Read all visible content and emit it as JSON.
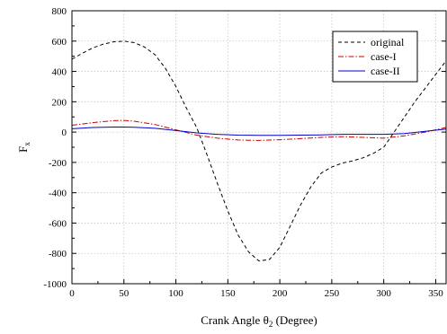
{
  "chart_data": {
    "type": "line",
    "xlabel": "Crank Angle",
    "xlabel_symbol": "θ",
    "xlabel_subscript": "2",
    "xlabel_unit": "(Degree)",
    "ylabel": "F",
    "ylabel_subscript": "x",
    "xlim": [
      0,
      360
    ],
    "ylim": [
      -1000,
      800
    ],
    "xticks": [
      0,
      50,
      100,
      150,
      200,
      250,
      300,
      350
    ],
    "yticks": [
      -1000,
      -800,
      -600,
      -400,
      -200,
      0,
      200,
      400,
      600,
      800
    ],
    "grid": true,
    "legend_position": "top-right",
    "series": [
      {
        "name": "original",
        "color": "#000000",
        "dash": "dashed",
        "x": [
          0,
          10,
          20,
          30,
          40,
          50,
          60,
          70,
          80,
          90,
          100,
          110,
          120,
          130,
          140,
          150,
          160,
          170,
          180,
          190,
          200,
          210,
          220,
          230,
          240,
          250,
          260,
          270,
          280,
          290,
          300,
          310,
          320,
          330,
          340,
          350,
          360
        ],
        "y": [
          480,
          520,
          555,
          580,
          595,
          600,
          590,
          560,
          510,
          420,
          300,
          160,
          30,
          -150,
          -340,
          -520,
          -680,
          -790,
          -850,
          -840,
          -760,
          -620,
          -480,
          -360,
          -270,
          -230,
          -205,
          -190,
          -170,
          -140,
          -100,
          0,
          100,
          200,
          290,
          380,
          470
        ]
      },
      {
        "name": "case-I",
        "color": "#cc0000",
        "dash": "dashdot",
        "x": [
          0,
          20,
          40,
          50,
          60,
          80,
          100,
          120,
          140,
          160,
          180,
          200,
          220,
          240,
          260,
          280,
          300,
          320,
          340,
          360
        ],
        "y": [
          45,
          62,
          75,
          77,
          72,
          50,
          15,
          -20,
          -40,
          -52,
          -55,
          -50,
          -43,
          -35,
          -30,
          -35,
          -40,
          -25,
          0,
          30
        ]
      },
      {
        "name": "case-II",
        "color": "#0000cc",
        "dash": "solid",
        "x": [
          0,
          20,
          40,
          50,
          60,
          80,
          100,
          120,
          140,
          160,
          180,
          200,
          220,
          240,
          260,
          280,
          300,
          320,
          340,
          360
        ],
        "y": [
          22,
          30,
          33,
          33,
          32,
          25,
          10,
          -5,
          -15,
          -20,
          -22,
          -22,
          -20,
          -18,
          -15,
          -15,
          -15,
          -10,
          5,
          20
        ]
      }
    ]
  }
}
